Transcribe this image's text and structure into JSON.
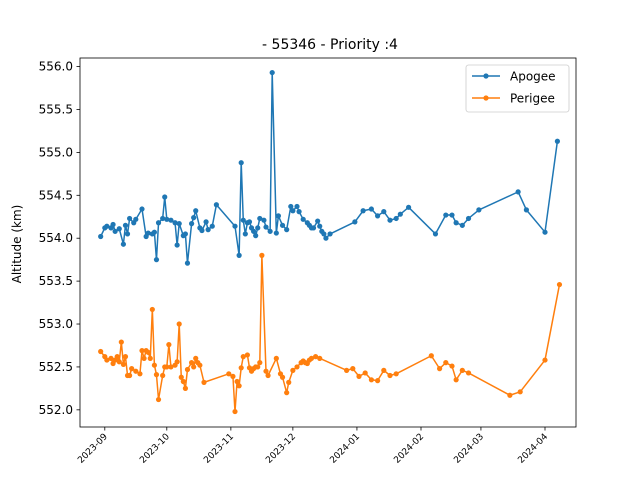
{
  "chart_data": {
    "type": "line",
    "title": " - 55346 - Priority :4",
    "xlabel": "",
    "ylabel": "Altitude (km)",
    "x_range": [
      "2023-08-20",
      "2024-04-16"
    ],
    "ylim": [
      551.8,
      556.1
    ],
    "y_ticks": [
      "552.0",
      "552.5",
      "553.0",
      "553.5",
      "554.0",
      "554.5",
      "555.0",
      "555.5",
      "556.0"
    ],
    "x_ticks": [
      {
        "date": "2023-09-01",
        "label": "2023-09"
      },
      {
        "date": "2023-10-01",
        "label": "2023-10"
      },
      {
        "date": "2023-11-01",
        "label": "2023-11"
      },
      {
        "date": "2023-12-01",
        "label": "2023-12"
      },
      {
        "date": "2024-01-01",
        "label": "2024-01"
      },
      {
        "date": "2024-02-01",
        "label": "2024-02"
      },
      {
        "date": "2024-03-01",
        "label": "2024-03"
      },
      {
        "date": "2024-04-01",
        "label": "2024-04"
      }
    ],
    "grid": false,
    "legend_position": "top-right",
    "series": [
      {
        "name": "Apogee",
        "color": "#1f77b4",
        "points": [
          [
            "2023-08-30",
            554.02
          ],
          [
            "2023-09-01",
            554.12
          ],
          [
            "2023-09-02",
            554.14
          ],
          [
            "2023-09-04",
            554.12
          ],
          [
            "2023-09-05",
            554.16
          ],
          [
            "2023-09-06",
            554.08
          ],
          [
            "2023-09-08",
            554.11
          ],
          [
            "2023-09-10",
            553.93
          ],
          [
            "2023-09-11",
            554.15
          ],
          [
            "2023-09-12",
            554.05
          ],
          [
            "2023-09-13",
            554.23
          ],
          [
            "2023-09-15",
            554.18
          ],
          [
            "2023-09-16",
            554.22
          ],
          [
            "2023-09-19",
            554.34
          ],
          [
            "2023-09-21",
            554.02
          ],
          [
            "2023-09-22",
            554.06
          ],
          [
            "2023-09-24",
            554.05
          ],
          [
            "2023-09-25",
            554.07
          ],
          [
            "2023-09-26",
            553.75
          ],
          [
            "2023-09-27",
            554.18
          ],
          [
            "2023-09-29",
            554.23
          ],
          [
            "2023-09-30",
            554.48
          ],
          [
            "2023-10-01",
            554.22
          ],
          [
            "2023-10-03",
            554.21
          ],
          [
            "2023-10-05",
            554.18
          ],
          [
            "2023-10-06",
            553.92
          ],
          [
            "2023-10-07",
            554.17
          ],
          [
            "2023-10-09",
            554.03
          ],
          [
            "2023-10-10",
            554.05
          ],
          [
            "2023-10-11",
            553.71
          ],
          [
            "2023-10-13",
            554.17
          ],
          [
            "2023-10-14",
            554.24
          ],
          [
            "2023-10-15",
            554.32
          ],
          [
            "2023-10-17",
            554.12
          ],
          [
            "2023-10-18",
            554.09
          ],
          [
            "2023-10-20",
            554.19
          ],
          [
            "2023-10-21",
            554.1
          ],
          [
            "2023-10-23",
            554.14
          ],
          [
            "2023-10-25",
            554.39
          ],
          [
            "2023-11-03",
            554.14
          ],
          [
            "2023-11-05",
            553.8
          ],
          [
            "2023-11-06",
            554.88
          ],
          [
            "2023-11-07",
            554.21
          ],
          [
            "2023-11-08",
            554.05
          ],
          [
            "2023-11-09",
            554.18
          ],
          [
            "2023-11-10",
            554.19
          ],
          [
            "2023-11-11",
            554.12
          ],
          [
            "2023-11-12",
            554.08
          ],
          [
            "2023-11-13",
            554.03
          ],
          [
            "2023-11-14",
            554.12
          ],
          [
            "2023-11-15",
            554.23
          ],
          [
            "2023-11-17",
            554.21
          ],
          [
            "2023-11-18",
            554.13
          ],
          [
            "2023-11-20",
            554.08
          ],
          [
            "2023-11-21",
            555.93
          ],
          [
            "2023-11-23",
            554.06
          ],
          [
            "2023-11-24",
            554.26
          ],
          [
            "2023-11-26",
            554.15
          ],
          [
            "2023-11-28",
            554.1
          ],
          [
            "2023-11-30",
            554.37
          ],
          [
            "2023-12-01",
            554.32
          ],
          [
            "2023-12-03",
            554.37
          ],
          [
            "2023-12-04",
            554.31
          ],
          [
            "2023-12-06",
            554.22
          ],
          [
            "2023-12-08",
            554.18
          ],
          [
            "2023-12-09",
            554.15
          ],
          [
            "2023-12-10",
            554.12
          ],
          [
            "2023-12-11",
            554.12
          ],
          [
            "2023-12-13",
            554.2
          ],
          [
            "2023-12-14",
            554.14
          ],
          [
            "2023-12-15",
            554.08
          ],
          [
            "2023-12-16",
            554.05
          ],
          [
            "2023-12-17",
            554.0
          ],
          [
            "2023-12-19",
            554.05
          ],
          [
            "2023-12-31",
            554.19
          ],
          [
            "2024-01-04",
            554.32
          ],
          [
            "2024-01-08",
            554.34
          ],
          [
            "2024-01-11",
            554.26
          ],
          [
            "2024-01-14",
            554.31
          ],
          [
            "2024-01-17",
            554.21
          ],
          [
            "2024-01-20",
            554.23
          ],
          [
            "2024-01-22",
            554.28
          ],
          [
            "2024-01-26",
            554.36
          ],
          [
            "2024-02-08",
            554.05
          ],
          [
            "2024-02-13",
            554.27
          ],
          [
            "2024-02-16",
            554.27
          ],
          [
            "2024-02-18",
            554.18
          ],
          [
            "2024-02-21",
            554.15
          ],
          [
            "2024-02-24",
            554.23
          ],
          [
            "2024-02-29",
            554.33
          ],
          [
            "2024-03-19",
            554.54
          ],
          [
            "2024-03-23",
            554.33
          ],
          [
            "2024-04-01",
            554.07
          ],
          [
            "2024-04-07",
            555.13
          ]
        ]
      },
      {
        "name": "Perigee",
        "color": "#ff7f0e",
        "points": [
          [
            "2023-08-30",
            552.68
          ],
          [
            "2023-09-01",
            552.62
          ],
          [
            "2023-09-02",
            552.58
          ],
          [
            "2023-09-04",
            552.6
          ],
          [
            "2023-09-05",
            552.54
          ],
          [
            "2023-09-06",
            552.58
          ],
          [
            "2023-09-07",
            552.62
          ],
          [
            "2023-09-08",
            552.56
          ],
          [
            "2023-09-09",
            552.79
          ],
          [
            "2023-09-10",
            552.53
          ],
          [
            "2023-09-11",
            552.62
          ],
          [
            "2023-09-12",
            552.4
          ],
          [
            "2023-09-13",
            552.4
          ],
          [
            "2023-09-14",
            552.48
          ],
          [
            "2023-09-16",
            552.45
          ],
          [
            "2023-09-18",
            552.42
          ],
          [
            "2023-09-19",
            552.69
          ],
          [
            "2023-09-20",
            552.6
          ],
          [
            "2023-09-21",
            552.69
          ],
          [
            "2023-09-22",
            552.67
          ],
          [
            "2023-09-23",
            552.6
          ],
          [
            "2023-09-24",
            553.17
          ],
          [
            "2023-09-25",
            552.52
          ],
          [
            "2023-09-26",
            552.41
          ],
          [
            "2023-09-27",
            552.12
          ],
          [
            "2023-09-29",
            552.4
          ],
          [
            "2023-09-30",
            552.5
          ],
          [
            "2023-10-01",
            552.5
          ],
          [
            "2023-10-02",
            552.76
          ],
          [
            "2023-10-03",
            552.5
          ],
          [
            "2023-10-05",
            552.52
          ],
          [
            "2023-10-06",
            552.56
          ],
          [
            "2023-10-07",
            553.0
          ],
          [
            "2023-10-08",
            552.38
          ],
          [
            "2023-10-09",
            552.33
          ],
          [
            "2023-10-10",
            552.25
          ],
          [
            "2023-10-11",
            552.47
          ],
          [
            "2023-10-13",
            552.55
          ],
          [
            "2023-10-14",
            552.5
          ],
          [
            "2023-10-15",
            552.6
          ],
          [
            "2023-10-16",
            552.55
          ],
          [
            "2023-10-17",
            552.52
          ],
          [
            "2023-10-19",
            552.32
          ],
          [
            "2023-10-31",
            552.42
          ],
          [
            "2023-11-02",
            552.39
          ],
          [
            "2023-11-03",
            551.98
          ],
          [
            "2023-11-04",
            552.33
          ],
          [
            "2023-11-05",
            552.28
          ],
          [
            "2023-11-06",
            552.49
          ],
          [
            "2023-11-07",
            552.62
          ],
          [
            "2023-11-09",
            552.64
          ],
          [
            "2023-11-10",
            552.49
          ],
          [
            "2023-11-11",
            552.45
          ],
          [
            "2023-11-12",
            552.48
          ],
          [
            "2023-11-13",
            552.5
          ],
          [
            "2023-11-14",
            552.5
          ],
          [
            "2023-11-15",
            552.55
          ],
          [
            "2023-11-16",
            553.8
          ],
          [
            "2023-11-18",
            552.45
          ],
          [
            "2023-11-19",
            552.4
          ],
          [
            "2023-11-23",
            552.6
          ],
          [
            "2023-11-25",
            552.42
          ],
          [
            "2023-11-26",
            552.38
          ],
          [
            "2023-11-28",
            552.2
          ],
          [
            "2023-11-29",
            552.32
          ],
          [
            "2023-12-01",
            552.46
          ],
          [
            "2023-12-03",
            552.5
          ],
          [
            "2023-12-05",
            552.55
          ],
          [
            "2023-12-06",
            552.57
          ],
          [
            "2023-12-07",
            552.55
          ],
          [
            "2023-12-08",
            552.54
          ],
          [
            "2023-12-09",
            552.58
          ],
          [
            "2023-12-10",
            552.6
          ],
          [
            "2023-12-12",
            552.62
          ],
          [
            "2023-12-14",
            552.6
          ],
          [
            "2023-12-27",
            552.46
          ],
          [
            "2023-12-30",
            552.48
          ],
          [
            "2024-01-02",
            552.39
          ],
          [
            "2024-01-05",
            552.43
          ],
          [
            "2024-01-08",
            552.35
          ],
          [
            "2024-01-11",
            552.34
          ],
          [
            "2024-01-14",
            552.46
          ],
          [
            "2024-01-17",
            552.4
          ],
          [
            "2024-01-20",
            552.42
          ],
          [
            "2024-02-06",
            552.63
          ],
          [
            "2024-02-10",
            552.48
          ],
          [
            "2024-02-13",
            552.55
          ],
          [
            "2024-02-16",
            552.51
          ],
          [
            "2024-02-18",
            552.35
          ],
          [
            "2024-02-21",
            552.46
          ],
          [
            "2024-02-24",
            552.43
          ],
          [
            "2024-03-15",
            552.17
          ],
          [
            "2024-03-20",
            552.21
          ],
          [
            "2024-04-01",
            552.58
          ],
          [
            "2024-04-08",
            553.46
          ]
        ]
      }
    ]
  }
}
